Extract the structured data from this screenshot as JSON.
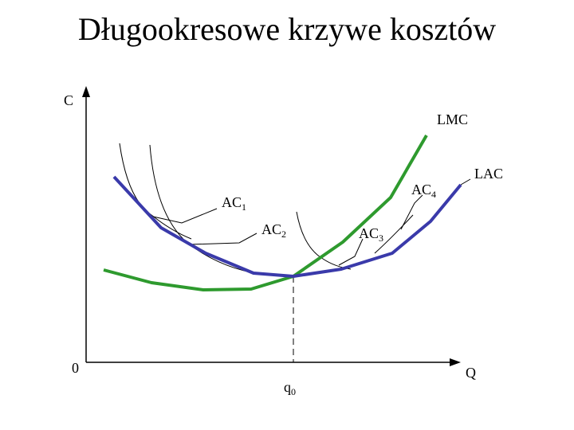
{
  "title": "Długookresowe krzywe kosztów",
  "axes": {
    "y_label": "C",
    "x_label": "Q",
    "origin": "0"
  },
  "marker": {
    "text": "q",
    "sub": "0"
  },
  "curves": {
    "lmc": "LMC",
    "lac": "LAC",
    "ac1": {
      "text": "AC",
      "sub": "1"
    },
    "ac2": {
      "text": "AC",
      "sub": "2"
    },
    "ac3": {
      "text": "AC",
      "sub": "3"
    },
    "ac4": {
      "text": "AC",
      "sub": "4"
    }
  }
}
